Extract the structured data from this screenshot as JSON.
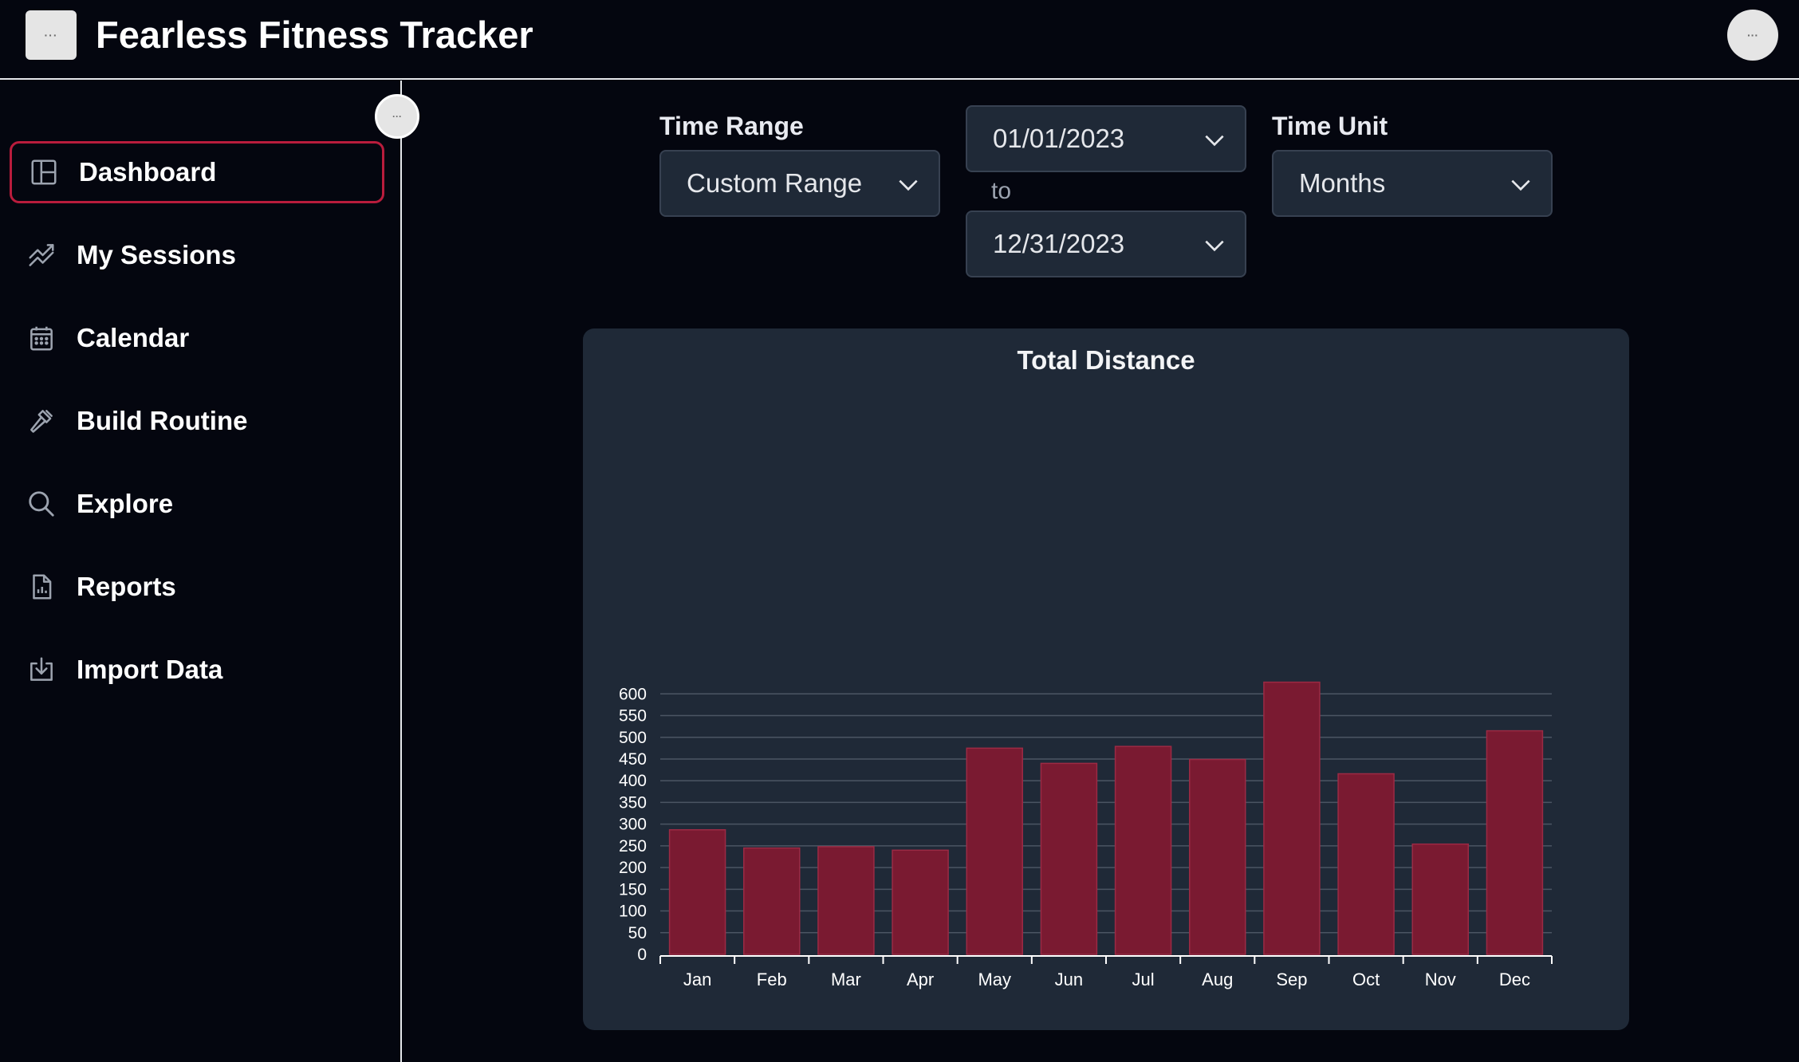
{
  "header": {
    "menu_glyph": "···",
    "title": "Fearless Fitness Tracker",
    "avatar_glyph": "···"
  },
  "sidebar": {
    "collapse_glyph": "···",
    "items": [
      {
        "label": "Dashboard",
        "icon": "layout-icon",
        "active": true
      },
      {
        "label": "My Sessions",
        "icon": "trend-icon",
        "active": false
      },
      {
        "label": "Calendar",
        "icon": "calendar-icon",
        "active": false
      },
      {
        "label": "Build Routine",
        "icon": "hammer-icon",
        "active": false
      },
      {
        "label": "Explore",
        "icon": "search-icon",
        "active": false
      },
      {
        "label": "Reports",
        "icon": "report-icon",
        "active": false
      },
      {
        "label": "Import Data",
        "icon": "import-icon",
        "active": false
      }
    ]
  },
  "filters": {
    "time_range_label": "Time Range",
    "time_range_value": "Custom Range",
    "start_date": "01/01/2023",
    "to_text": "to",
    "end_date": "12/31/2023",
    "time_unit_label": "Time Unit",
    "time_unit_value": "Months"
  },
  "colors": {
    "accent": "#b91c3c",
    "bar_fill": "#7a1a31",
    "bar_stroke": "#9b2a44",
    "card_bg": "#1f2937",
    "page_bg": "#04060f"
  },
  "chart_data": {
    "type": "bar",
    "title": "Total Distance",
    "categories": [
      "Jan",
      "Feb",
      "Mar",
      "Apr",
      "May",
      "Jun",
      "Jul",
      "Aug",
      "Sep",
      "Oct",
      "Nov",
      "Dec"
    ],
    "values": [
      287,
      245,
      248,
      240,
      475,
      440,
      479,
      449,
      627,
      416,
      254,
      515
    ],
    "ylim": [
      0,
      600
    ],
    "yticks": [
      0,
      50,
      100,
      150,
      200,
      250,
      300,
      350,
      400,
      450,
      500,
      550,
      600
    ],
    "grid": true,
    "xlabel": "",
    "ylabel": ""
  }
}
